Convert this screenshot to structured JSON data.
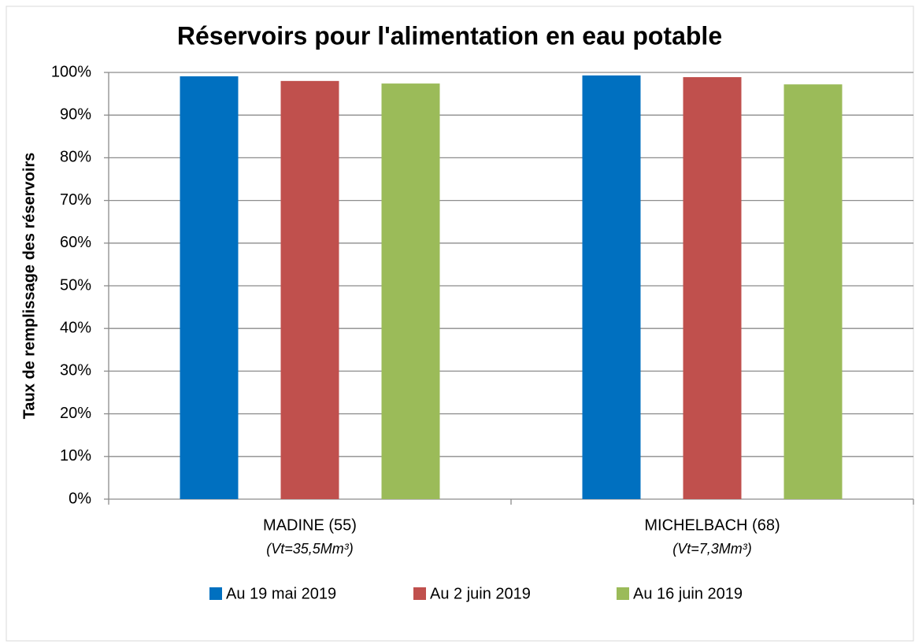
{
  "chart_data": {
    "type": "bar",
    "title": "Réservoirs pour l'alimentation en eau potable",
    "y_axis_label": "Taux de remplissage des réservoirs",
    "categories": [
      "MADINE (55)",
      "MICHELBACH (68)"
    ],
    "category_notes": [
      "(Vt=35,5Mm³)",
      "(Vt=7,3Mm³)"
    ],
    "series": [
      {
        "name": "Au 19 mai 2019",
        "color": "#0070c0",
        "values": [
          99.1,
          99.3
        ]
      },
      {
        "name": "Au 2 juin 2019",
        "color": "#c0504d",
        "values": [
          98.0,
          98.9
        ]
      },
      {
        "name": "Au 16 juin 2019",
        "color": "#9bbb59",
        "values": [
          97.4,
          97.2
        ]
      }
    ],
    "ylim": [
      0,
      100
    ],
    "yticks": [
      {
        "value": 0,
        "label": "0%"
      },
      {
        "value": 10,
        "label": "10%"
      },
      {
        "value": 20,
        "label": "20%"
      },
      {
        "value": 30,
        "label": "30%"
      },
      {
        "value": 40,
        "label": "40%"
      },
      {
        "value": 50,
        "label": "50%"
      },
      {
        "value": 60,
        "label": "60%"
      },
      {
        "value": 70,
        "label": "70%"
      },
      {
        "value": 80,
        "label": "80%"
      },
      {
        "value": 90,
        "label": "90%"
      },
      {
        "value": 100,
        "label": "100%"
      }
    ],
    "grid": true,
    "legend": "bottom"
  }
}
